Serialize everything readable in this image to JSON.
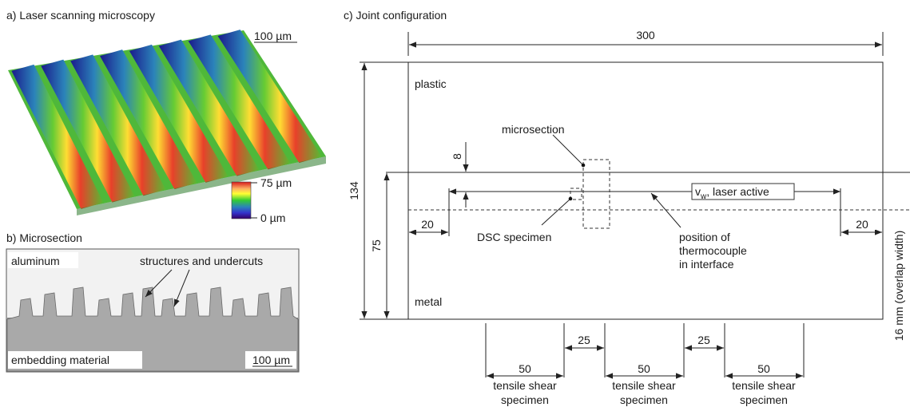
{
  "panel_a": {
    "title": "a) Laser scanning microscopy",
    "scale_label": "100 µm",
    "colorbar": {
      "max_label": "75 µm",
      "min_label": "0 µm",
      "colors": [
        "#d7191c",
        "#fdae61",
        "#ffff33",
        "#33cc33",
        "#2b83ba",
        "#3333cc",
        "#330066"
      ]
    }
  },
  "panel_b": {
    "title": "b) Microsection",
    "top_label": "aluminum",
    "annotation": "structures and undercuts",
    "bottom_label": "embedding material",
    "scale_label": "100 µm"
  },
  "panel_c": {
    "title": "c) Joint configuration",
    "width_dim": "300",
    "height_dim": "134",
    "metal_dim": "75",
    "offset_dim": "8",
    "left_dim": "20",
    "right_dim": "20",
    "plastic_label": "plastic",
    "metal_label": "metal",
    "microsection_label": "microsection",
    "dsc_label": "DSC specimen",
    "thermo_line1": "position of",
    "thermo_line2": "thermocouple",
    "thermo_line3": "in interface",
    "vw_label_main": "v",
    "vw_label_sub": "w",
    "vw_label_rest": ", laser active",
    "overlap_label": "16 mm (overlap width)",
    "specimens": [
      {
        "width": "50",
        "line1": "tensile shear",
        "line2": "specimen"
      },
      {
        "width": "50",
        "line1": "tensile shear",
        "line2": "specimen"
      },
      {
        "width": "50",
        "line1": "tensile shear",
        "line2": "specimen"
      }
    ],
    "gaps": [
      "25",
      "25"
    ]
  }
}
